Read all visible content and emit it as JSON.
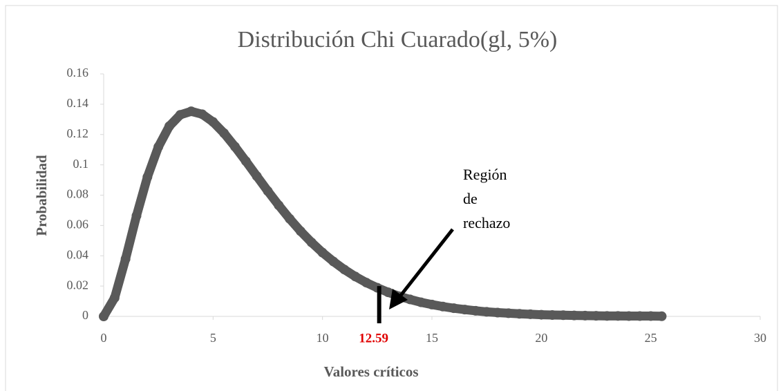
{
  "chart_data": {
    "type": "scatter",
    "title": "Distribución Chi Cuarado(gl, 5%)",
    "xlabel": "Valores críticos",
    "ylabel": "Probabilidad",
    "color": "#595959",
    "x": [
      0,
      0.5,
      1,
      1.5,
      2,
      2.5,
      3,
      3.5,
      4,
      4.5,
      5,
      5.5,
      6,
      6.5,
      7,
      7.5,
      8,
      8.5,
      9,
      9.5,
      10,
      10.5,
      11,
      11.5,
      12,
      12.5,
      13,
      13.5,
      14,
      14.5,
      15,
      15.5,
      16,
      16.5,
      17,
      17.5,
      18,
      18.5,
      19,
      19.5,
      20,
      20.5,
      21,
      21.5,
      22,
      22.5,
      23,
      23.5,
      24,
      24.5,
      25,
      25.5
    ],
    "values": [
      0,
      0.0122,
      0.0379,
      0.0664,
      0.092,
      0.1119,
      0.1255,
      0.133,
      0.1353,
      0.1334,
      0.1283,
      0.1209,
      0.112,
      0.1024,
      0.0925,
      0.0827,
      0.0733,
      0.0644,
      0.0562,
      0.0488,
      0.0421,
      0.0362,
      0.0309,
      0.0263,
      0.0223,
      0.0189,
      0.0159,
      0.0133,
      0.0112,
      0.0093,
      0.0078,
      0.0065,
      0.0054,
      0.0045,
      0.0037,
      0.003,
      0.0025,
      0.0021,
      0.0017,
      0.0014,
      0.0011,
      0.0009,
      0.0008,
      0.0006,
      0.0005,
      0.0004,
      0.0003,
      0.0003,
      0.0002,
      0.0002,
      0.0002,
      0.0001
    ],
    "xlim": [
      0,
      30
    ],
    "xticks": [
      0,
      5,
      10,
      15,
      20,
      25,
      30
    ],
    "ylim": [
      0,
      0.16
    ],
    "yticks": [
      0,
      0.02,
      0.04,
      0.06,
      0.08,
      0.1,
      0.12,
      0.14,
      0.16
    ],
    "critical_value": 12.59,
    "annotation": [
      "Región",
      "de",
      "rechazo"
    ]
  }
}
